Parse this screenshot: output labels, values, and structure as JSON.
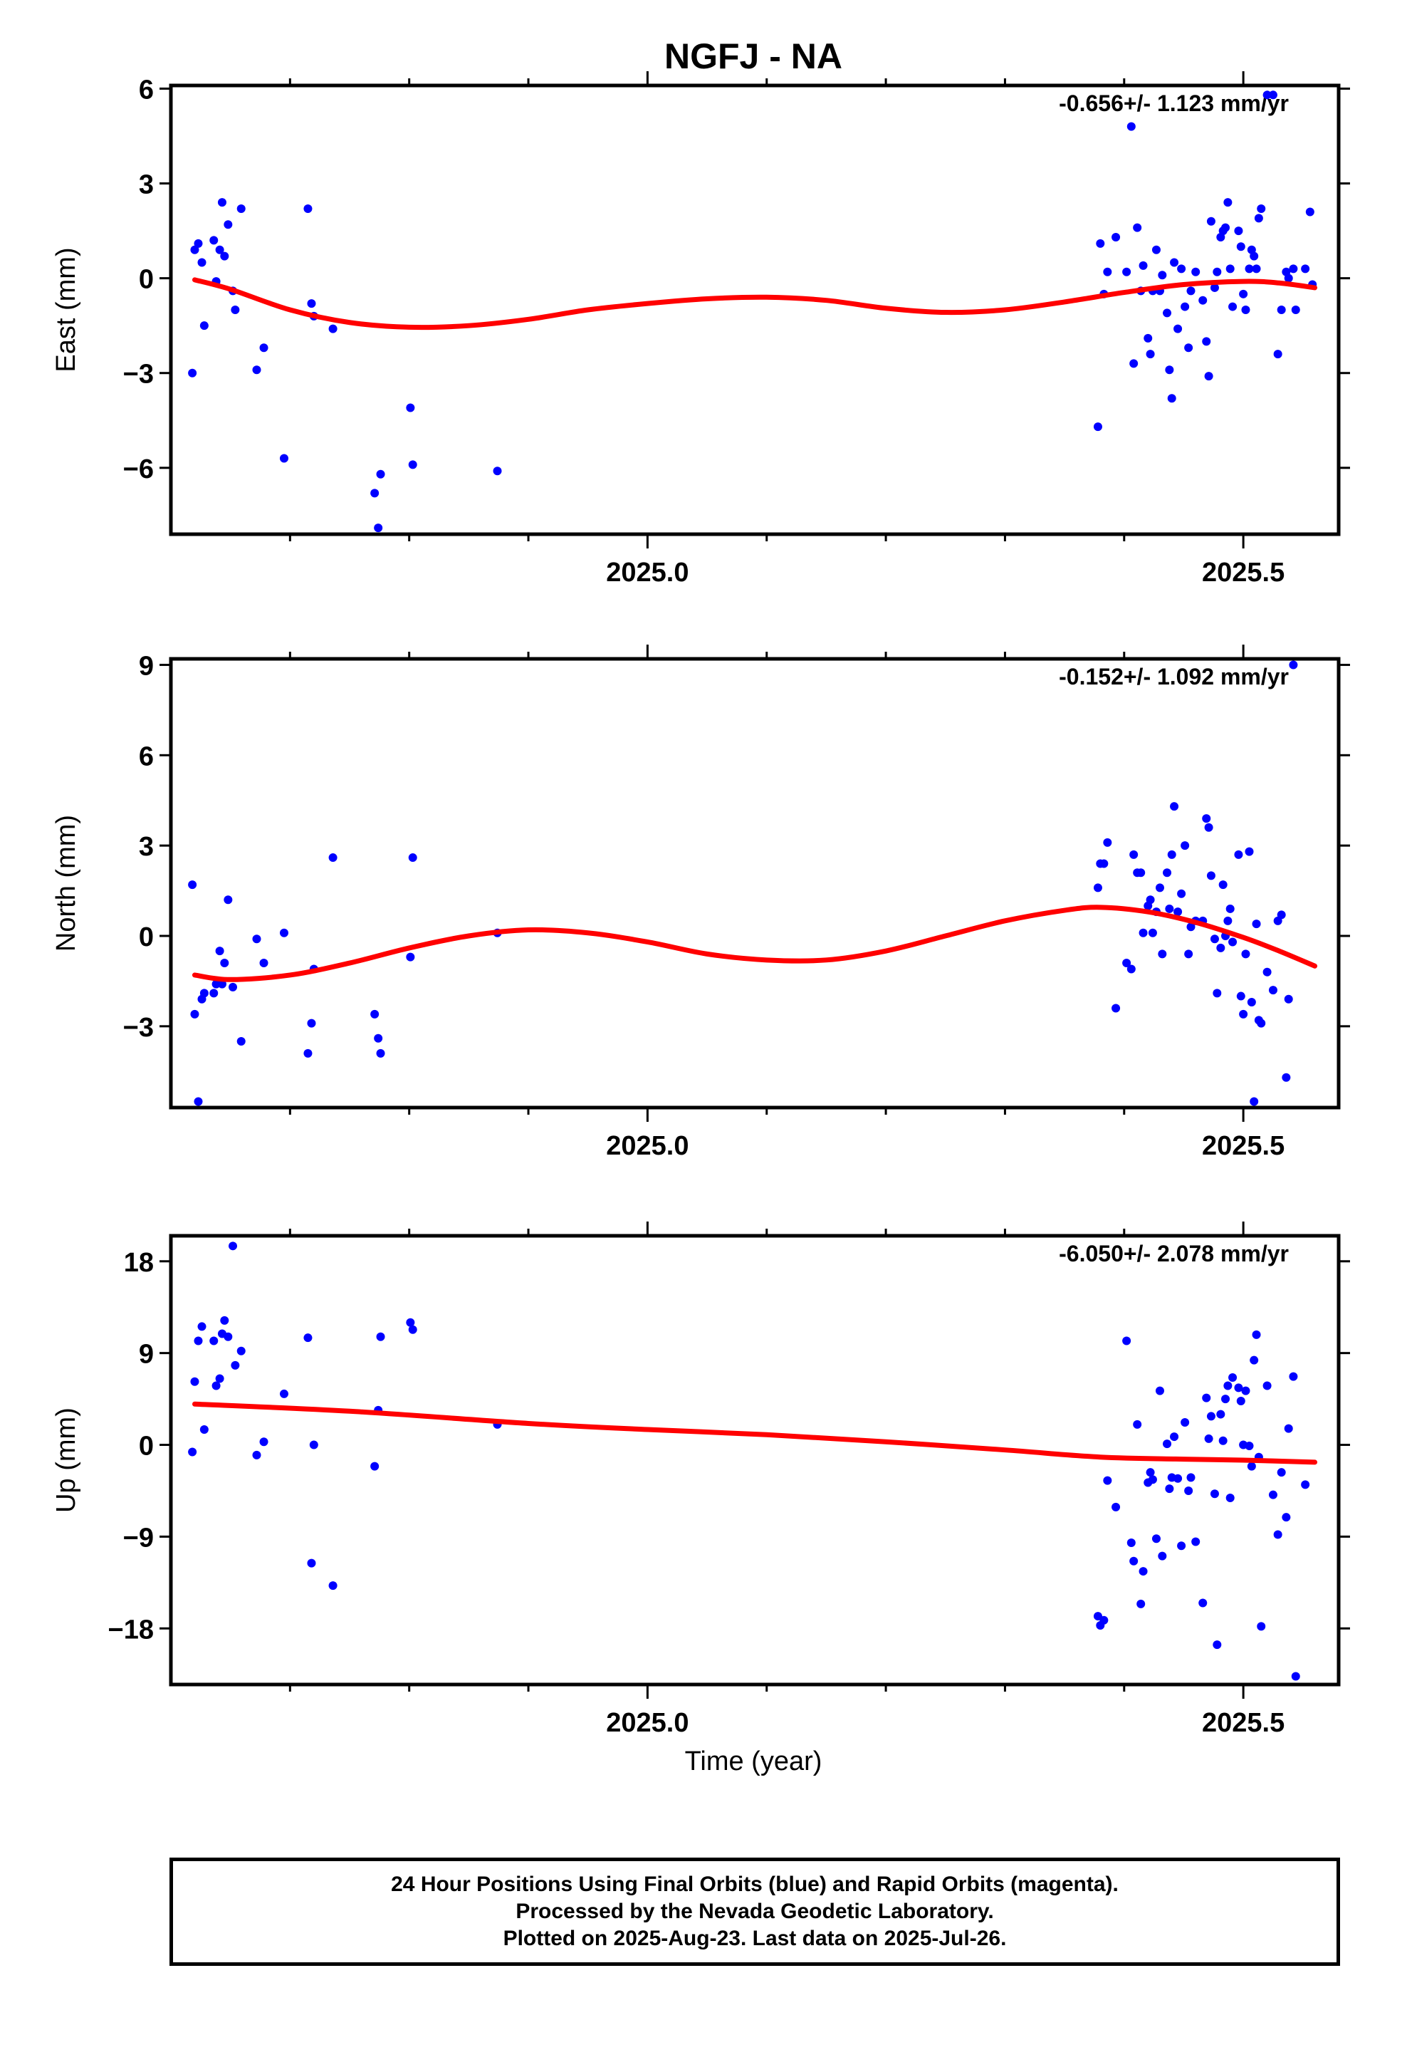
{
  "title": "NGFJ - NA",
  "xlabel": "Time (year)",
  "caption": {
    "line1": "24 Hour Positions Using Final Orbits (blue) and Rapid Orbits (magenta).",
    "line2": "Processed by the Nevada Geodetic Laboratory.",
    "line3": "Plotted on 2025-Aug-23. Last data on 2025-Jul-26."
  },
  "colors": {
    "data": "#0000ff",
    "fit": "#ff0000",
    "axis": "#000000"
  },
  "chart_data": [
    {
      "type": "scatter",
      "component": "east",
      "ylabel": "East (mm)",
      "rate_label": "-0.656+/- 1.123 mm/yr",
      "xlim": [
        2024.6,
        2025.58
      ],
      "ylim": [
        -8.1,
        6.1
      ],
      "yticks": [
        6,
        3,
        0,
        -3,
        -6
      ],
      "ytick_labels": [
        "6",
        "3",
        "0",
        "−3",
        "−6"
      ],
      "xticks_labeled": [
        2025.0,
        2025.5
      ],
      "xtick_labels": [
        "2025.0",
        "2025.5"
      ],
      "xticks_minor": [
        2024.7,
        2024.8,
        2024.9,
        2025.1,
        2025.2,
        2025.3,
        2025.4
      ],
      "points": [
        [
          2024.618,
          -3.0
        ],
        [
          2024.62,
          0.9
        ],
        [
          2024.623,
          1.1
        ],
        [
          2024.626,
          0.5
        ],
        [
          2024.628,
          -1.5
        ],
        [
          2024.636,
          1.2
        ],
        [
          2024.638,
          -0.1
        ],
        [
          2024.641,
          0.9
        ],
        [
          2024.643,
          2.4
        ],
        [
          2024.645,
          0.7
        ],
        [
          2024.648,
          1.7
        ],
        [
          2024.652,
          -0.4
        ],
        [
          2024.654,
          -1.0
        ],
        [
          2024.659,
          2.2
        ],
        [
          2024.672,
          -2.9
        ],
        [
          2024.678,
          -2.2
        ],
        [
          2024.695,
          -5.7
        ],
        [
          2024.715,
          2.2
        ],
        [
          2024.718,
          -0.8
        ],
        [
          2024.72,
          -1.2
        ],
        [
          2024.736,
          -1.6
        ],
        [
          2024.771,
          -6.8
        ],
        [
          2024.774,
          -7.9
        ],
        [
          2024.776,
          -6.2
        ],
        [
          2024.801,
          -4.1
        ],
        [
          2024.803,
          -5.9
        ],
        [
          2024.874,
          -6.1
        ],
        [
          2025.378,
          -4.7
        ],
        [
          2025.38,
          1.1
        ],
        [
          2025.383,
          -0.5
        ],
        [
          2025.386,
          0.2
        ],
        [
          2025.393,
          1.3
        ],
        [
          2025.402,
          0.2
        ],
        [
          2025.406,
          4.8
        ],
        [
          2025.408,
          -2.7
        ],
        [
          2025.411,
          1.6
        ],
        [
          2025.414,
          -0.4
        ],
        [
          2025.416,
          0.4
        ],
        [
          2025.42,
          -1.9
        ],
        [
          2025.422,
          -2.4
        ],
        [
          2025.424,
          -0.4
        ],
        [
          2025.427,
          0.9
        ],
        [
          2025.43,
          -0.4
        ],
        [
          2025.432,
          0.1
        ],
        [
          2025.436,
          -1.1
        ],
        [
          2025.438,
          -2.9
        ],
        [
          2025.44,
          -3.8
        ],
        [
          2025.442,
          0.5
        ],
        [
          2025.445,
          -1.6
        ],
        [
          2025.448,
          0.3
        ],
        [
          2025.451,
          -0.9
        ],
        [
          2025.454,
          -2.2
        ],
        [
          2025.456,
          -0.4
        ],
        [
          2025.46,
          0.2
        ],
        [
          2025.466,
          -0.7
        ],
        [
          2025.469,
          -2.0
        ],
        [
          2025.471,
          -3.1
        ],
        [
          2025.473,
          1.8
        ],
        [
          2025.476,
          -0.3
        ],
        [
          2025.478,
          0.2
        ],
        [
          2025.481,
          1.3
        ],
        [
          2025.483,
          1.5
        ],
        [
          2025.485,
          1.6
        ],
        [
          2025.487,
          2.4
        ],
        [
          2025.489,
          0.3
        ],
        [
          2025.491,
          -0.9
        ],
        [
          2025.496,
          1.5
        ],
        [
          2025.498,
          1.0
        ],
        [
          2025.5,
          -0.5
        ],
        [
          2025.502,
          -1.0
        ],
        [
          2025.505,
          0.3
        ],
        [
          2025.507,
          0.9
        ],
        [
          2025.509,
          0.7
        ],
        [
          2025.511,
          0.3
        ],
        [
          2025.513,
          1.9
        ],
        [
          2025.515,
          2.2
        ],
        [
          2025.52,
          5.8
        ],
        [
          2025.525,
          5.8
        ],
        [
          2025.529,
          -2.4
        ],
        [
          2025.532,
          -1.0
        ],
        [
          2025.536,
          0.2
        ],
        [
          2025.538,
          0.0
        ],
        [
          2025.542,
          0.3
        ],
        [
          2025.544,
          -1.0
        ],
        [
          2025.552,
          0.3
        ],
        [
          2025.556,
          2.1
        ],
        [
          2025.558,
          -0.2
        ]
      ],
      "fit": [
        [
          2024.62,
          -0.05
        ],
        [
          2024.65,
          -0.35
        ],
        [
          2024.7,
          -1.0
        ],
        [
          2024.75,
          -1.4
        ],
        [
          2024.8,
          -1.55
        ],
        [
          2024.85,
          -1.5
        ],
        [
          2024.9,
          -1.3
        ],
        [
          2024.95,
          -1.0
        ],
        [
          2025.0,
          -0.8
        ],
        [
          2025.05,
          -0.65
        ],
        [
          2025.1,
          -0.6
        ],
        [
          2025.15,
          -0.7
        ],
        [
          2025.2,
          -0.95
        ],
        [
          2025.25,
          -1.08
        ],
        [
          2025.3,
          -1.0
        ],
        [
          2025.35,
          -0.75
        ],
        [
          2025.4,
          -0.45
        ],
        [
          2025.45,
          -0.2
        ],
        [
          2025.5,
          -0.1
        ],
        [
          2025.53,
          -0.15
        ],
        [
          2025.56,
          -0.3
        ]
      ]
    },
    {
      "type": "scatter",
      "component": "north",
      "ylabel": "North (mm)",
      "rate_label": "-0.152+/- 1.092 mm/yr",
      "xlim": [
        2024.6,
        2025.58
      ],
      "ylim": [
        -5.7,
        9.2
      ],
      "yticks": [
        9,
        6,
        3,
        0,
        -3
      ],
      "ytick_labels": [
        "9",
        "6",
        "3",
        "0",
        "−3"
      ],
      "xticks_labeled": [
        2025.0,
        2025.5
      ],
      "xtick_labels": [
        "2025.0",
        "2025.5"
      ],
      "xticks_minor": [
        2024.7,
        2024.8,
        2024.9,
        2025.1,
        2025.2,
        2025.3,
        2025.4
      ],
      "points": [
        [
          2024.618,
          1.7
        ],
        [
          2024.62,
          -2.6
        ],
        [
          2024.623,
          -5.5
        ],
        [
          2024.626,
          -2.1
        ],
        [
          2024.628,
          -1.9
        ],
        [
          2024.636,
          -1.9
        ],
        [
          2024.638,
          -1.6
        ],
        [
          2024.641,
          -0.5
        ],
        [
          2024.643,
          -1.6
        ],
        [
          2024.645,
          -0.9
        ],
        [
          2024.648,
          1.2
        ],
        [
          2024.652,
          -1.7
        ],
        [
          2024.659,
          -3.5
        ],
        [
          2024.672,
          -0.1
        ],
        [
          2024.678,
          -0.9
        ],
        [
          2024.695,
          0.1
        ],
        [
          2024.715,
          -3.9
        ],
        [
          2024.718,
          -2.9
        ],
        [
          2024.72,
          -1.1
        ],
        [
          2024.736,
          2.6
        ],
        [
          2024.771,
          -2.6
        ],
        [
          2024.774,
          -3.4
        ],
        [
          2024.776,
          -3.9
        ],
        [
          2024.801,
          -0.7
        ],
        [
          2024.803,
          2.6
        ],
        [
          2024.874,
          0.1
        ],
        [
          2025.378,
          1.6
        ],
        [
          2025.38,
          2.4
        ],
        [
          2025.383,
          2.4
        ],
        [
          2025.386,
          3.1
        ],
        [
          2025.393,
          -2.4
        ],
        [
          2025.402,
          -0.9
        ],
        [
          2025.406,
          -1.1
        ],
        [
          2025.408,
          2.7
        ],
        [
          2025.411,
          2.1
        ],
        [
          2025.414,
          2.1
        ],
        [
          2025.416,
          0.1
        ],
        [
          2025.42,
          1.0
        ],
        [
          2025.422,
          1.2
        ],
        [
          2025.424,
          0.1
        ],
        [
          2025.427,
          0.8
        ],
        [
          2025.43,
          1.6
        ],
        [
          2025.432,
          -0.6
        ],
        [
          2025.436,
          2.1
        ],
        [
          2025.438,
          0.9
        ],
        [
          2025.44,
          2.7
        ],
        [
          2025.442,
          4.3
        ],
        [
          2025.445,
          0.8
        ],
        [
          2025.448,
          1.4
        ],
        [
          2025.451,
          3.0
        ],
        [
          2025.454,
          -0.6
        ],
        [
          2025.456,
          0.3
        ],
        [
          2025.46,
          0.5
        ],
        [
          2025.466,
          0.5
        ],
        [
          2025.469,
          3.9
        ],
        [
          2025.471,
          3.6
        ],
        [
          2025.473,
          2.0
        ],
        [
          2025.476,
          -0.1
        ],
        [
          2025.478,
          -1.9
        ],
        [
          2025.481,
          -0.4
        ],
        [
          2025.483,
          1.7
        ],
        [
          2025.485,
          0.0
        ],
        [
          2025.487,
          0.5
        ],
        [
          2025.489,
          0.9
        ],
        [
          2025.491,
          -0.2
        ],
        [
          2025.496,
          2.7
        ],
        [
          2025.498,
          -2.0
        ],
        [
          2025.5,
          -2.6
        ],
        [
          2025.502,
          -0.6
        ],
        [
          2025.505,
          2.8
        ],
        [
          2025.507,
          -2.2
        ],
        [
          2025.509,
          -5.5
        ],
        [
          2025.511,
          0.4
        ],
        [
          2025.513,
          -2.8
        ],
        [
          2025.515,
          -2.9
        ],
        [
          2025.52,
          -1.2
        ],
        [
          2025.525,
          -1.8
        ],
        [
          2025.529,
          0.5
        ],
        [
          2025.532,
          0.7
        ],
        [
          2025.536,
          -4.7
        ],
        [
          2025.538,
          -2.1
        ],
        [
          2025.542,
          9.0
        ]
      ],
      "fit": [
        [
          2024.62,
          -1.3
        ],
        [
          2024.65,
          -1.45
        ],
        [
          2024.7,
          -1.3
        ],
        [
          2024.75,
          -0.9
        ],
        [
          2024.8,
          -0.4
        ],
        [
          2024.85,
          0.0
        ],
        [
          2024.9,
          0.2
        ],
        [
          2024.95,
          0.1
        ],
        [
          2025.0,
          -0.2
        ],
        [
          2025.05,
          -0.6
        ],
        [
          2025.1,
          -0.8
        ],
        [
          2025.15,
          -0.8
        ],
        [
          2025.2,
          -0.5
        ],
        [
          2025.25,
          0.0
        ],
        [
          2025.3,
          0.5
        ],
        [
          2025.35,
          0.85
        ],
        [
          2025.38,
          0.95
        ],
        [
          2025.42,
          0.8
        ],
        [
          2025.46,
          0.45
        ],
        [
          2025.5,
          -0.05
        ],
        [
          2025.53,
          -0.5
        ],
        [
          2025.56,
          -1.0
        ]
      ]
    },
    {
      "type": "scatter",
      "component": "up",
      "ylabel": "Up (mm)",
      "rate_label": "-6.050+/- 2.078 mm/yr",
      "xlim": [
        2024.6,
        2025.58
      ],
      "ylim": [
        -23.5,
        20.5
      ],
      "yticks": [
        18,
        9,
        0,
        -9,
        -18
      ],
      "ytick_labels": [
        "18",
        "9",
        "0",
        "−9",
        "−18"
      ],
      "xticks_labeled": [
        2025.0,
        2025.5
      ],
      "xtick_labels": [
        "2025.0",
        "2025.5"
      ],
      "xticks_minor": [
        2024.7,
        2024.8,
        2024.9,
        2025.1,
        2025.2,
        2025.3,
        2025.4
      ],
      "points": [
        [
          2024.618,
          -0.7
        ],
        [
          2024.62,
          6.2
        ],
        [
          2024.623,
          10.2
        ],
        [
          2024.626,
          11.6
        ],
        [
          2024.628,
          1.5
        ],
        [
          2024.636,
          10.2
        ],
        [
          2024.638,
          5.8
        ],
        [
          2024.641,
          6.5
        ],
        [
          2024.643,
          10.9
        ],
        [
          2024.645,
          12.2
        ],
        [
          2024.648,
          10.6
        ],
        [
          2024.652,
          19.5
        ],
        [
          2024.654,
          7.8
        ],
        [
          2024.659,
          9.2
        ],
        [
          2024.672,
          -1.0
        ],
        [
          2024.678,
          0.3
        ],
        [
          2024.695,
          5.0
        ],
        [
          2024.715,
          10.5
        ],
        [
          2024.718,
          -11.6
        ],
        [
          2024.72,
          0.0
        ],
        [
          2024.736,
          -13.8
        ],
        [
          2024.771,
          -2.1
        ],
        [
          2024.774,
          3.4
        ],
        [
          2024.776,
          10.6
        ],
        [
          2024.801,
          12.0
        ],
        [
          2024.803,
          11.3
        ],
        [
          2024.874,
          2.0
        ],
        [
          2025.378,
          -16.8
        ],
        [
          2025.38,
          -17.7
        ],
        [
          2025.383,
          -17.2
        ],
        [
          2025.386,
          -3.5
        ],
        [
          2025.393,
          -6.1
        ],
        [
          2025.402,
          10.2
        ],
        [
          2025.406,
          -9.6
        ],
        [
          2025.408,
          -11.4
        ],
        [
          2025.411,
          2.0
        ],
        [
          2025.414,
          -15.6
        ],
        [
          2025.416,
          -12.4
        ],
        [
          2025.42,
          -3.7
        ],
        [
          2025.422,
          -2.7
        ],
        [
          2025.424,
          -3.4
        ],
        [
          2025.427,
          -9.2
        ],
        [
          2025.43,
          5.3
        ],
        [
          2025.432,
          -10.9
        ],
        [
          2025.436,
          0.1
        ],
        [
          2025.438,
          -4.3
        ],
        [
          2025.44,
          -3.2
        ],
        [
          2025.442,
          0.8
        ],
        [
          2025.445,
          -3.3
        ],
        [
          2025.448,
          -9.9
        ],
        [
          2025.451,
          2.2
        ],
        [
          2025.454,
          -4.5
        ],
        [
          2025.456,
          -3.2
        ],
        [
          2025.46,
          -9.5
        ],
        [
          2025.466,
          -15.5
        ],
        [
          2025.469,
          4.6
        ],
        [
          2025.471,
          0.6
        ],
        [
          2025.473,
          2.8
        ],
        [
          2025.476,
          -4.8
        ],
        [
          2025.478,
          -19.6
        ],
        [
          2025.481,
          3.0
        ],
        [
          2025.483,
          0.4
        ],
        [
          2025.485,
          4.5
        ],
        [
          2025.487,
          5.8
        ],
        [
          2025.489,
          -5.2
        ],
        [
          2025.491,
          6.6
        ],
        [
          2025.496,
          5.6
        ],
        [
          2025.498,
          4.3
        ],
        [
          2025.5,
          0.0
        ],
        [
          2025.502,
          5.3
        ],
        [
          2025.505,
          -0.1
        ],
        [
          2025.507,
          -2.1
        ],
        [
          2025.509,
          8.3
        ],
        [
          2025.511,
          10.8
        ],
        [
          2025.513,
          -1.2
        ],
        [
          2025.515,
          -17.8
        ],
        [
          2025.52,
          5.8
        ],
        [
          2025.525,
          -4.9
        ],
        [
          2025.529,
          -8.8
        ],
        [
          2025.532,
          -2.7
        ],
        [
          2025.536,
          -7.1
        ],
        [
          2025.538,
          1.6
        ],
        [
          2025.542,
          6.7
        ],
        [
          2025.544,
          -22.7
        ],
        [
          2025.552,
          -3.9
        ]
      ],
      "fit": [
        [
          2024.62,
          4.0
        ],
        [
          2024.75,
          3.3
        ],
        [
          2024.9,
          2.1
        ],
        [
          2025.0,
          1.5
        ],
        [
          2025.1,
          1.0
        ],
        [
          2025.2,
          0.3
        ],
        [
          2025.3,
          -0.5
        ],
        [
          2025.38,
          -1.2
        ],
        [
          2025.45,
          -1.4
        ],
        [
          2025.5,
          -1.5
        ],
        [
          2025.56,
          -1.7
        ]
      ]
    }
  ]
}
